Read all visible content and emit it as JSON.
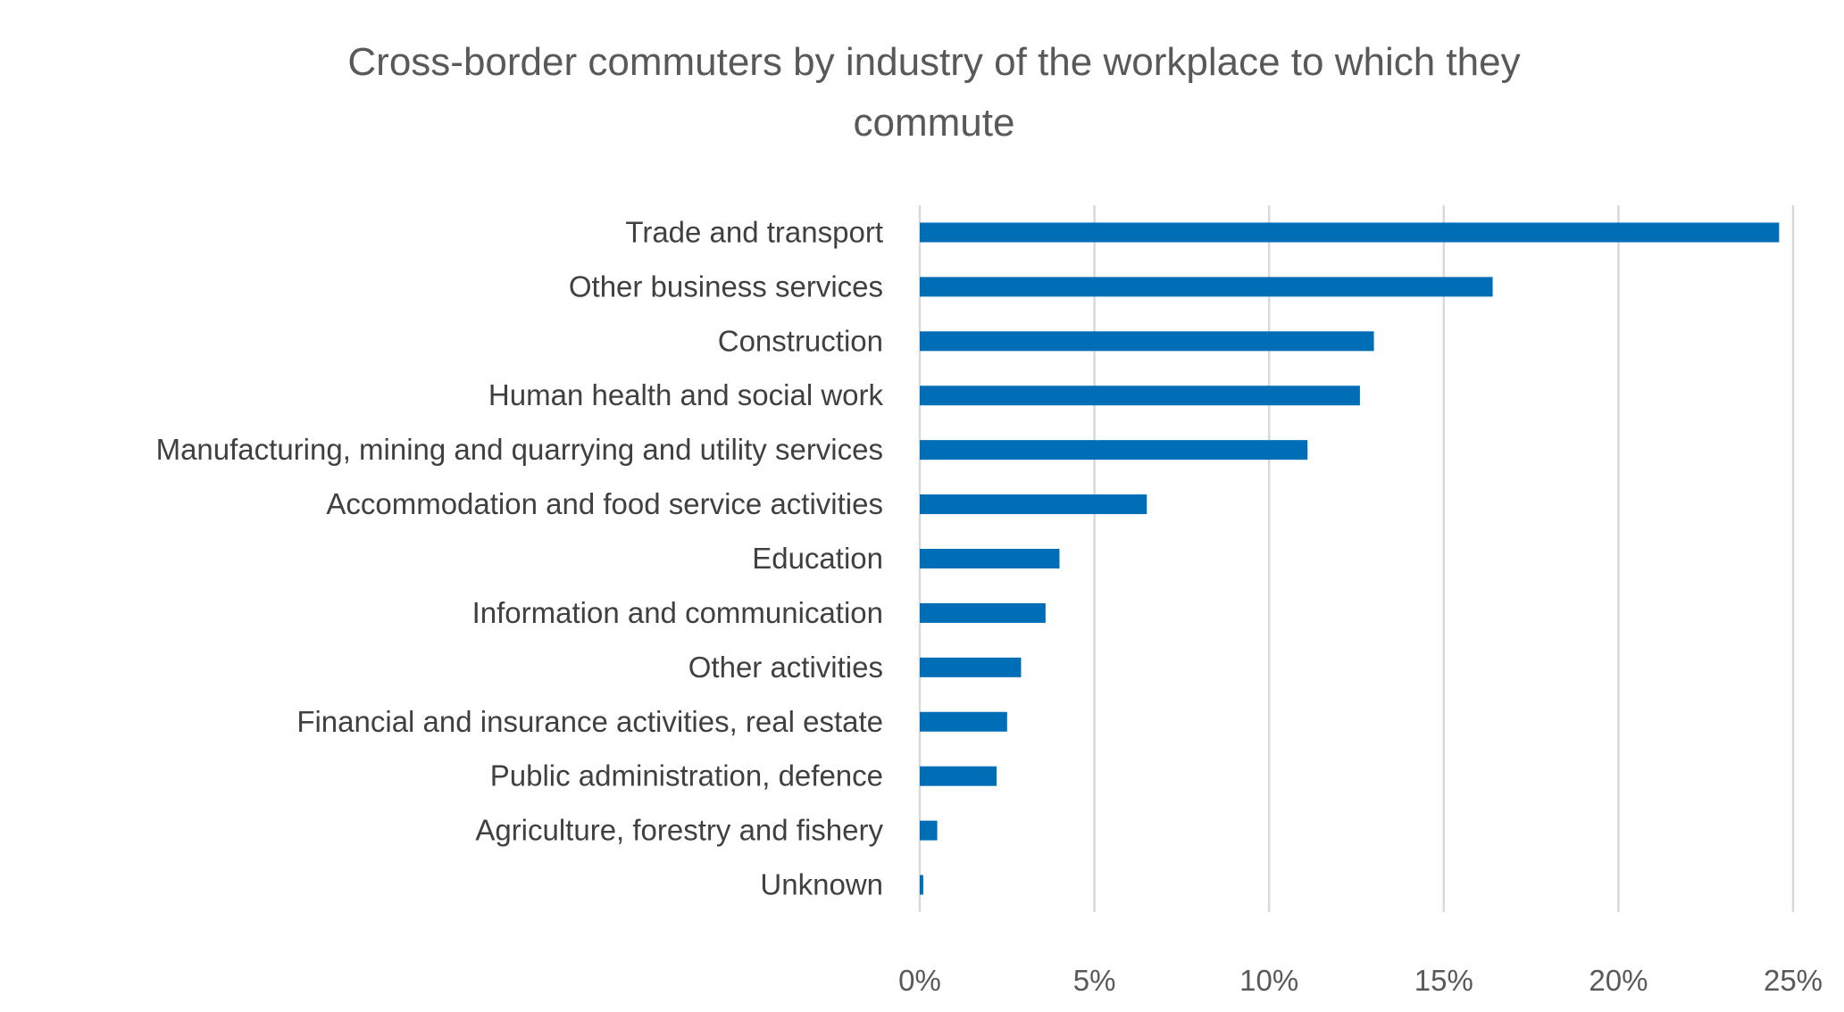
{
  "chart_data": {
    "type": "bar",
    "orientation": "horizontal",
    "title": "Cross-border commuters by industry of the workplace to which they commute",
    "title_lines": [
      "Cross-border commuters by industry of the workplace to which they",
      "commute"
    ],
    "categories": [
      "Trade and transport",
      "Other business services",
      "Construction",
      "Human health and social work",
      "Manufacturing, mining and quarrying and utility services",
      "Accommodation and food service activities",
      "Education",
      "Information and communication",
      "Other activities",
      "Financial and insurance activities, real estate",
      "Public administration, defence",
      "Agriculture, forestry and fishery",
      "Unknown"
    ],
    "values": [
      24.6,
      16.4,
      13.0,
      12.6,
      11.1,
      6.5,
      4.0,
      3.6,
      2.9,
      2.5,
      2.2,
      0.5,
      0.1
    ],
    "unit": "%",
    "xlim": [
      0,
      25
    ],
    "xticks": [
      0,
      5,
      10,
      15,
      20,
      25
    ],
    "xtick_labels": [
      "0%",
      "5%",
      "10%",
      "15%",
      "20%",
      "25%"
    ],
    "xlabel": "",
    "ylabel": "",
    "grid": "vertical",
    "legend": "none",
    "bar_color": "#006EB6",
    "grid_color": "#D9D9D9"
  }
}
